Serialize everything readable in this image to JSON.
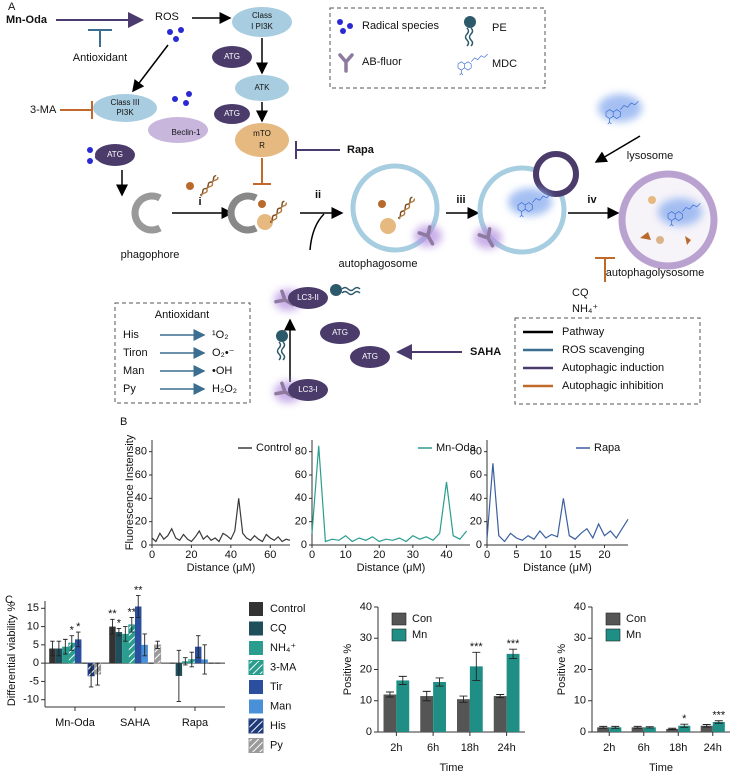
{
  "panel_a": {
    "label": "A",
    "mn_oda": "Mn-Oda",
    "ros": "ROS",
    "antioxidant": "Antioxidant",
    "class_i_pi3k": [
      "Class",
      "I PI3K"
    ],
    "atg": "ATG",
    "atk": "ATK",
    "three_ma": "3-MA",
    "class_iii_pi3k": [
      "Class III",
      "PI3K"
    ],
    "beclin": "Beclin-1",
    "mtor": [
      "mTO",
      "R"
    ],
    "rapa": "Rapa",
    "phagophore": "phagophore",
    "steps": [
      "i",
      "ii",
      "iii",
      "iv"
    ],
    "autophagosome": "autophagosome",
    "lysosome": "lysosome",
    "autophagolysosome": "autophagolysosome",
    "cq": "CQ",
    "nh4": "NH₄⁺",
    "lc3_ii": "LC3-II",
    "lc3_i": "LC3-I",
    "saha": "SAHA",
    "symbol_legend": [
      "Radical species",
      "AB-fluor",
      "PE",
      "MDC"
    ],
    "antioxidant_box": {
      "title": "Antioxidant",
      "rows": [
        [
          "His",
          "¹O₂"
        ],
        [
          "Tiron",
          "O₂•⁻"
        ],
        [
          "Man",
          "•OH"
        ],
        [
          "Py",
          "H₂O₂"
        ]
      ]
    },
    "pathway_legend": [
      {
        "label": "Pathway",
        "color": "#000000"
      },
      {
        "label": "ROS scavenging",
        "color": "#3b6e8f"
      },
      {
        "label": "Autophagic induction",
        "color": "#4b3a6e"
      },
      {
        "label": "Autophagic inhibition",
        "color": "#c0692b"
      }
    ]
  },
  "panel_b": {
    "label": "B",
    "charts": [
      {
        "type": "line",
        "ylabel": "Fluorescence Instensity",
        "xlabel": "Distance (μM)",
        "x": [
          0,
          2,
          4,
          6,
          8,
          10,
          12,
          14,
          16,
          18,
          20,
          22,
          24,
          26,
          28,
          30,
          32,
          34,
          36,
          38,
          40,
          42,
          44,
          46,
          48,
          50,
          52,
          54,
          56,
          58,
          60,
          62,
          64,
          66,
          68,
          70
        ],
        "series": [
          {
            "name": "Control",
            "color": "#3a3a3a",
            "values": [
              6,
              3,
              10,
              5,
              8,
              14,
              6,
              4,
              9,
              5,
              3,
              7,
              12,
              5,
              8,
              4,
              6,
              3,
              10,
              8,
              5,
              12,
              40,
              10,
              6,
              4,
              8,
              5,
              3,
              9,
              6,
              4,
              7,
              3,
              5,
              4
            ]
          }
        ],
        "xlim": [
          0,
          70
        ],
        "xticks": [
          0,
          20,
          40,
          60
        ],
        "ylim": [
          0,
          90
        ],
        "yticks": [
          0,
          20,
          40,
          60,
          80
        ]
      },
      {
        "type": "line",
        "xlabel": "Distance (μM)",
        "x": [
          0,
          2,
          4,
          6,
          8,
          10,
          12,
          14,
          16,
          18,
          20,
          22,
          24,
          26,
          28,
          30,
          32,
          34,
          36,
          38,
          40,
          42,
          44,
          46
        ],
        "series": [
          {
            "name": "Mn-Oda",
            "color": "#2a9d8f",
            "values": [
              10,
              85,
              3,
              5,
              4,
              8,
              3,
              6,
              4,
              7,
              3,
              5,
              4,
              6,
              3,
              8,
              5,
              7,
              4,
              10,
              54,
              8,
              5,
              12
            ]
          }
        ],
        "xlim": [
          0,
          47
        ],
        "xticks": [
          0,
          10,
          20,
          30,
          40
        ],
        "ylim": [
          0,
          90
        ],
        "yticks": [
          0,
          20,
          40,
          60,
          80
        ]
      },
      {
        "type": "line",
        "xlabel": "Distance (μM)",
        "x": [
          0,
          1,
          2,
          3,
          4,
          5,
          6,
          7,
          8,
          9,
          10,
          11,
          12,
          13,
          14,
          15,
          16,
          17,
          18,
          19,
          20,
          21,
          22,
          23,
          24
        ],
        "series": [
          {
            "name": "Rapa",
            "color": "#3a5f9e",
            "values": [
              5,
              70,
              8,
              3,
              10,
              6,
              4,
              8,
              5,
              12,
              6,
              9,
              7,
              40,
              8,
              5,
              10,
              14,
              6,
              18,
              8,
              12,
              6,
              14,
              22
            ]
          }
        ],
        "xlim": [
          0,
          24
        ],
        "xticks": [
          0,
          5,
          10,
          15,
          20
        ],
        "ylim": [
          0,
          90
        ],
        "yticks": [
          0,
          20,
          40,
          60,
          80
        ]
      }
    ]
  },
  "panel_c": {
    "label": "C",
    "charts": [
      {
        "type": "bar",
        "ylabel": "Differential viability %",
        "categories": [
          "Mn-Oda",
          "SAHA",
          "Rapa"
        ],
        "legend": "right",
        "ylim": [
          -12,
          17
        ],
        "yticks": [
          -10,
          -5,
          0,
          5,
          10,
          15
        ],
        "series": [
          {
            "name": "Control",
            "color": "#333333",
            "values": [
              4,
              10,
              0
            ],
            "errors": [
              2,
              2,
              0
            ],
            "significance": [
              null,
              "**",
              null
            ]
          },
          {
            "name": "CQ",
            "color": "#1f4f5a",
            "values": [
              4,
              8.5,
              -3.5
            ],
            "errors": [
              2,
              1,
              7
            ],
            "significance": [
              null,
              "*",
              null
            ]
          },
          {
            "name": "NH₄⁺",
            "color": "#2a9d8f",
            "values": [
              4.5,
              8,
              0.5
            ],
            "errors": [
              2,
              2,
              1
            ]
          },
          {
            "name": "3-MA",
            "color": "#2a9d8f",
            "hatch": true,
            "values": [
              5.5,
              10.5,
              1
            ],
            "errors": [
              2,
              2,
              2
            ],
            "significance": [
              "*",
              "**",
              null
            ]
          },
          {
            "name": "Tir",
            "color": "#2b4f9e",
            "values": [
              6.5,
              15.5,
              4.5
            ],
            "errors": [
              2,
              3,
              3
            ],
            "significance": [
              "*",
              "**",
              null
            ]
          },
          {
            "name": "Man",
            "color": "#4a90d9",
            "values": [
              0,
              5,
              1
            ],
            "errors": [
              0,
              3,
              4
            ]
          },
          {
            "name": "His",
            "color": "#1e3a7a",
            "hatch": true,
            "values": [
              -3.5,
              0,
              0
            ],
            "errors": [
              3,
              0,
              0
            ]
          },
          {
            "name": "Py",
            "color": "#9a9a9a",
            "hatch": true,
            "values": [
              -3,
              5,
              0
            ],
            "errors": [
              3,
              1,
              0
            ]
          }
        ]
      },
      {
        "type": "bar",
        "ylabel": "Positive %",
        "xlabel": "Time",
        "categories": [
          "2h",
          "6h",
          "18h",
          "24h"
        ],
        "legend": "upper left",
        "ylim": [
          0,
          40
        ],
        "yticks": [
          0,
          10,
          20,
          30,
          40
        ],
        "series": [
          {
            "name": "Con",
            "color": "#555555",
            "values": [
              12,
              11.5,
              10.5,
              11.5
            ],
            "errors": [
              0.8,
              1.5,
              1,
              0.5
            ]
          },
          {
            "name": "Mn",
            "color": "#1f8f86",
            "values": [
              16.5,
              16,
              21,
              25
            ],
            "errors": [
              1.3,
              1.3,
              4.5,
              1.5
            ],
            "significance": [
              null,
              null,
              "***",
              "***"
            ]
          }
        ]
      },
      {
        "type": "bar",
        "ylabel": "Positive %",
        "xlabel": "Time",
        "categories": [
          "2h",
          "6h",
          "18h",
          "24h"
        ],
        "legend": "upper left",
        "ylim": [
          0,
          40
        ],
        "yticks": [
          0,
          10,
          20,
          30,
          40
        ],
        "series": [
          {
            "name": "Con",
            "color": "#555555",
            "values": [
              1.5,
              1.5,
              1,
              2
            ],
            "errors": [
              0.3,
              0.3,
              0.2,
              0.4
            ]
          },
          {
            "name": "Mn",
            "color": "#1f8f86",
            "values": [
              1.5,
              1.5,
              2,
              3.2
            ],
            "errors": [
              0.3,
              0.2,
              0.5,
              0.4
            ],
            "significance": [
              null,
              null,
              "*",
              "***"
            ]
          }
        ]
      }
    ]
  }
}
